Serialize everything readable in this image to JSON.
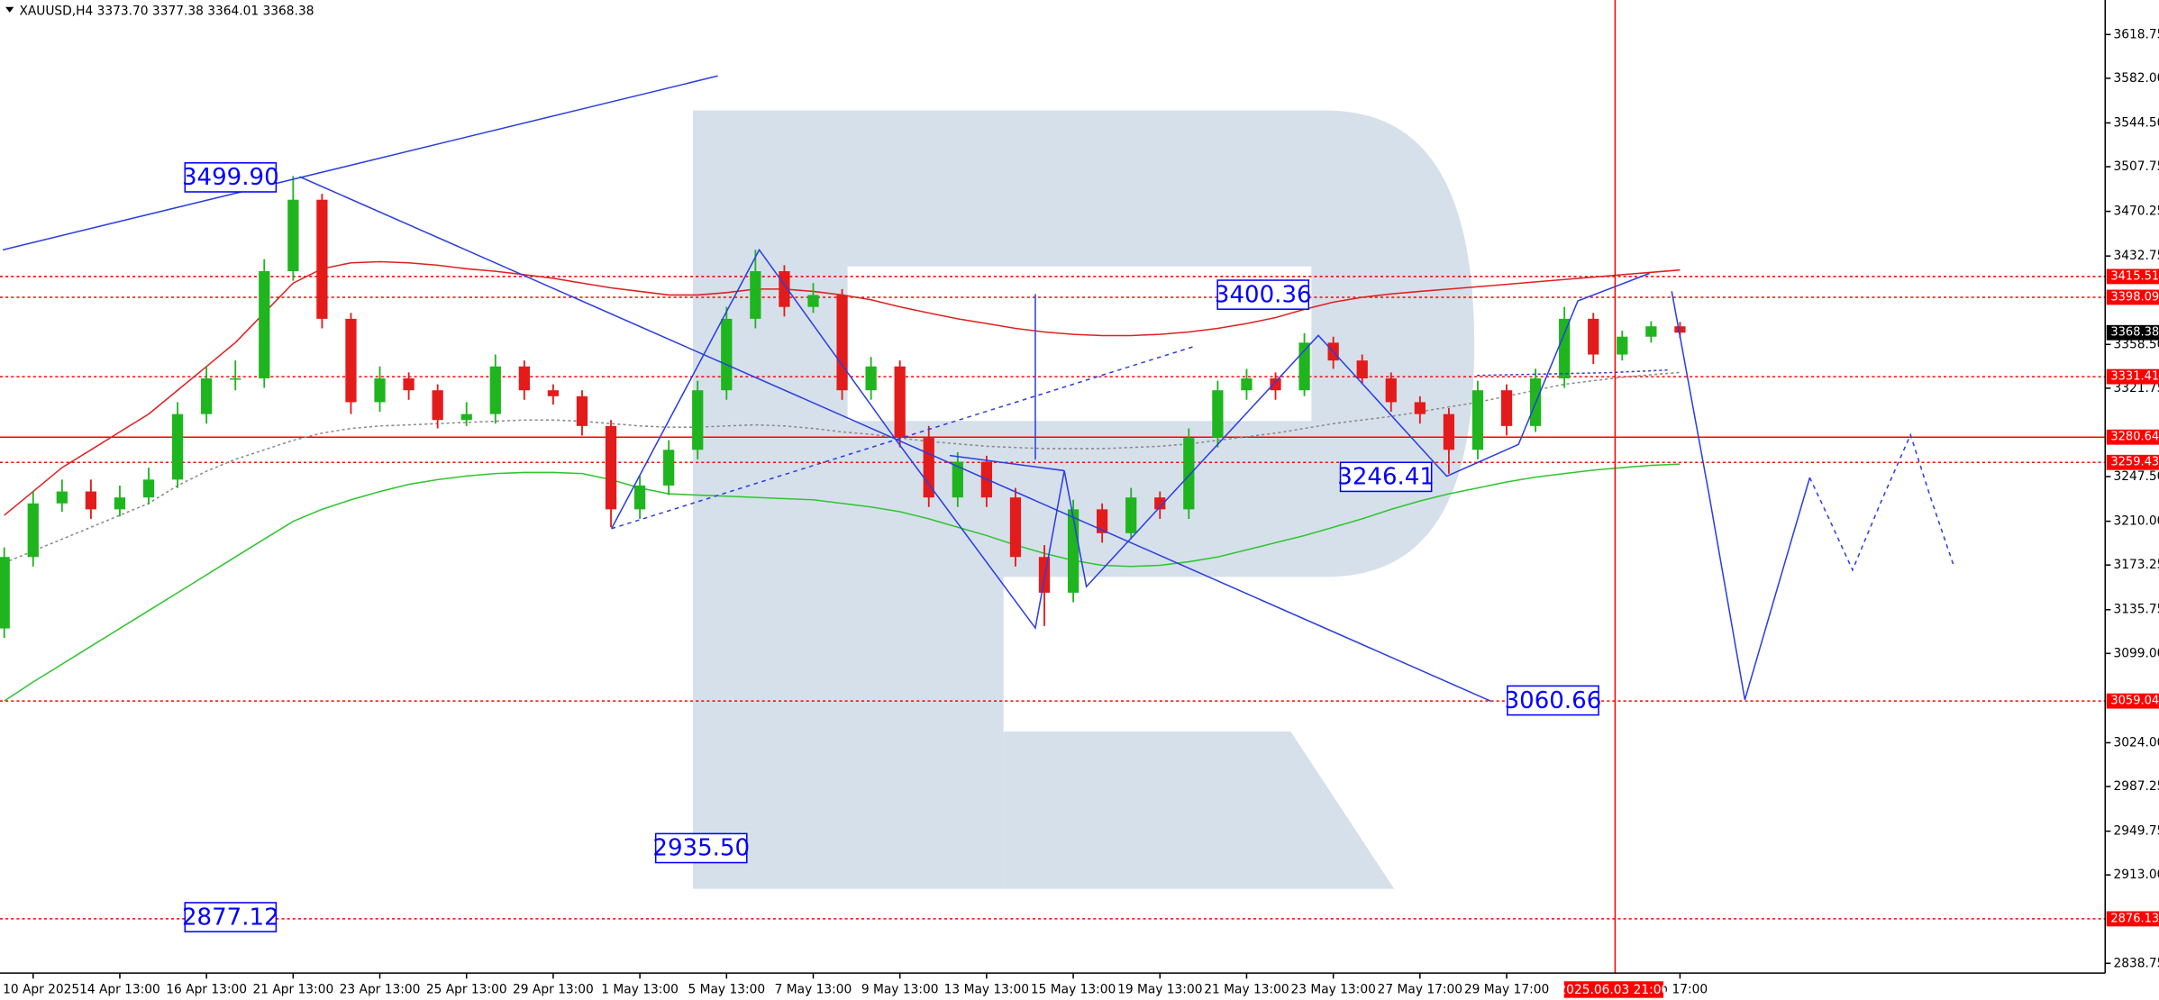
{
  "chart_data": {
    "type": "candlestick",
    "title": "XAUUSD,H4  3373.70 3377.38 3364.01 3368.38",
    "categories": [
      null,
      "10 Apr 2025",
      null,
      null,
      "14 Apr 13:00",
      null,
      null,
      "16 Apr 13:00",
      null,
      null,
      "21 Apr 13:00",
      null,
      null,
      "23 Apr 13:00",
      null,
      null,
      "25 Apr 13:00",
      null,
      null,
      "29 Apr 13:00",
      null,
      null,
      "1 May 13:00",
      null,
      null,
      "5 May 13:00",
      null,
      null,
      "7 May 13:00",
      null,
      null,
      "9 May 13:00",
      null,
      null,
      "13 May 13:00",
      null,
      null,
      "15 May 13:00",
      null,
      null,
      "19 May 13:00",
      null,
      null,
      "21 May 13:00",
      null,
      null,
      "23 May 13:00",
      null,
      null,
      "27 May 17:00",
      null,
      null,
      "29 May 17:00",
      null,
      null,
      null,
      null,
      null,
      "un 17:00"
    ],
    "open": [
      3120,
      3180,
      3225,
      3235,
      3220,
      3230,
      3245,
      3300,
      3330,
      3330,
      3420,
      3480,
      3380,
      3310,
      3330,
      3320,
      3295,
      3300,
      3340,
      3320,
      3315,
      3290,
      3220,
      3240,
      3270,
      3320,
      3380,
      3420,
      3390,
      3400,
      3320,
      3340,
      3280,
      3230,
      3260,
      3230,
      3180,
      3150,
      3220,
      3200,
      3230,
      3220,
      3280,
      3320,
      3330,
      3320,
      3360,
      3345,
      3330,
      3310,
      3300,
      3270,
      3320,
      3290,
      3330,
      3380,
      3350,
      3365,
      3373.7
    ],
    "high": [
      3188,
      3235,
      3245,
      3245,
      3240,
      3255,
      3310,
      3340,
      3345,
      3430,
      3499.9,
      3485,
      3385,
      3340,
      3335,
      3325,
      3310,
      3350,
      3345,
      3325,
      3320,
      3295,
      3248,
      3278,
      3328,
      3390,
      3438,
      3425,
      3410,
      3405,
      3348,
      3345,
      3290,
      3268,
      3265,
      3238,
      3190,
      3228,
      3225,
      3238,
      3235,
      3288,
      3328,
      3338,
      3335,
      3368,
      3365,
      3350,
      3335,
      3315,
      3305,
      3328,
      3325,
      3338,
      3390,
      3385,
      3370,
      3378,
      3377.38
    ],
    "low": [
      3112,
      3172,
      3218,
      3212,
      3214,
      3224,
      3238,
      3292,
      3320,
      3322,
      3412,
      3372,
      3300,
      3302,
      3312,
      3288,
      3290,
      3292,
      3312,
      3308,
      3282,
      3205,
      3212,
      3232,
      3262,
      3312,
      3372,
      3382,
      3385,
      3312,
      3312,
      3272,
      3222,
      3222,
      3222,
      3172,
      3122,
      3142,
      3192,
      3195,
      3212,
      3212,
      3272,
      3312,
      3312,
      3315,
      3338,
      3325,
      3302,
      3292,
      3250,
      3262,
      3282,
      3285,
      3322,
      3342,
      3345,
      3360,
      3364.01
    ],
    "close": [
      3180,
      3225,
      3235,
      3220,
      3230,
      3245,
      3300,
      3330,
      3330,
      3420,
      3480,
      3380,
      3310,
      3330,
      3320,
      3295,
      3300,
      3340,
      3320,
      3315,
      3290,
      3220,
      3240,
      3270,
      3320,
      3380,
      3420,
      3390,
      3400,
      3320,
      3340,
      3280,
      3230,
      3260,
      3230,
      3180,
      3150,
      3220,
      3200,
      3230,
      3220,
      3280,
      3320,
      3330,
      3320,
      3360,
      3345,
      3330,
      3310,
      3300,
      3270,
      3320,
      3290,
      3330,
      3380,
      3350,
      3365,
      3373.7,
      3368.38
    ],
    "up_color": "#1fb51f",
    "down_color": "#e31b1b",
    "moving_averages": [
      {
        "color": "#e02020",
        "dashed": false,
        "values": [
          3215,
          3235,
          3255,
          3270,
          3285,
          3300,
          3320,
          3340,
          3360,
          3385,
          3410,
          3422,
          3427,
          3428,
          3427,
          3425,
          3422,
          3420,
          3417,
          3414,
          3410,
          3406,
          3403,
          3400,
          3400,
          3402,
          3405,
          3405,
          3403,
          3400,
          3396,
          3390,
          3385,
          3380,
          3376,
          3372,
          3369,
          3367,
          3366,
          3366,
          3367,
          3369,
          3372,
          3376,
          3381,
          3388,
          3394,
          3398,
          3401,
          3403,
          3405,
          3407,
          3409,
          3411,
          3413,
          3415,
          3417,
          3419,
          3421
        ]
      },
      {
        "color": "#2fc52f",
        "dashed": false,
        "values": [
          3059,
          3075,
          3090,
          3105,
          3120,
          3135,
          3150,
          3165,
          3180,
          3195,
          3210,
          3220,
          3228,
          3235,
          3241,
          3245,
          3248,
          3250,
          3251,
          3251,
          3250,
          3245,
          3238,
          3233,
          3232,
          3231,
          3230,
          3229,
          3228,
          3225,
          3222,
          3218,
          3212,
          3205,
          3198,
          3190,
          3183,
          3177,
          3173,
          3172,
          3173,
          3176,
          3180,
          3186,
          3192,
          3198,
          3205,
          3212,
          3220,
          3227,
          3233,
          3238,
          3243,
          3247,
          3250,
          3253,
          3255,
          3257,
          3258
        ]
      },
      {
        "color": "#8a8a8a",
        "dashed": true,
        "values": [
          3175,
          3185,
          3195,
          3205,
          3215,
          3225,
          3240,
          3252,
          3262,
          3270,
          3278,
          3284,
          3288,
          3290,
          3291,
          3292,
          3293,
          3294,
          3295,
          3295,
          3294,
          3292,
          3290,
          3289,
          3289,
          3290,
          3291,
          3290,
          3288,
          3285,
          3283,
          3280,
          3277,
          3275,
          3273,
          3272,
          3271,
          3271,
          3271,
          3272,
          3273,
          3275,
          3278,
          3281,
          3284,
          3288,
          3292,
          3295,
          3298,
          3302,
          3306,
          3310,
          3315,
          3320,
          3325,
          3328,
          3331,
          3333,
          3335
        ]
      }
    ],
    "ylim": [
      2830.6,
      3647.7
    ],
    "yticks": [
      3618.75,
      {
        "value": 3582,
        "label": "3582.00"
      },
      {
        "value": 3544.5,
        "label": "3544.50"
      },
      3507.75,
      3470.25,
      3432.75,
      {
        "value": 3358.5,
        "label": "3358.50"
      },
      3321.75,
      {
        "value": 3247.5,
        "label": "3247.50"
      },
      {
        "value": 3210,
        "label": "3210.00"
      },
      3173.25,
      3135.75,
      {
        "value": 3099,
        "label": "3099.00"
      },
      {
        "value": 3024,
        "label": "3024.00"
      },
      2987.25,
      2949.75,
      {
        "value": 2913,
        "label": "2913.00"
      },
      2838.75
    ],
    "grid": false,
    "levels": [
      {
        "value": 3415.51,
        "color": "#ff0000",
        "dashed": true
      },
      {
        "value": 3398.09,
        "color": "#ff0000",
        "dashed": true
      },
      {
        "value": 3331.41,
        "color": "#ff0000",
        "dashed": true
      },
      {
        "value": 3280.64,
        "color": "#ff0000",
        "dashed": false
      },
      {
        "value": 3259.43,
        "color": "#ff0000",
        "dashed": true
      },
      {
        "value": 3059.04,
        "color": "#ff0000",
        "dashed": true
      },
      {
        "value": 2876.13,
        "color": "#ff0000",
        "dashed": true
      }
    ],
    "cursor": {
      "label": "2025.06.03 21:00",
      "color": "#ff0000"
    },
    "annotations": [
      "3499.90",
      "3400.36",
      "3246.41",
      "3060.66",
      "2935.50",
      "2877.12"
    ]
  }
}
